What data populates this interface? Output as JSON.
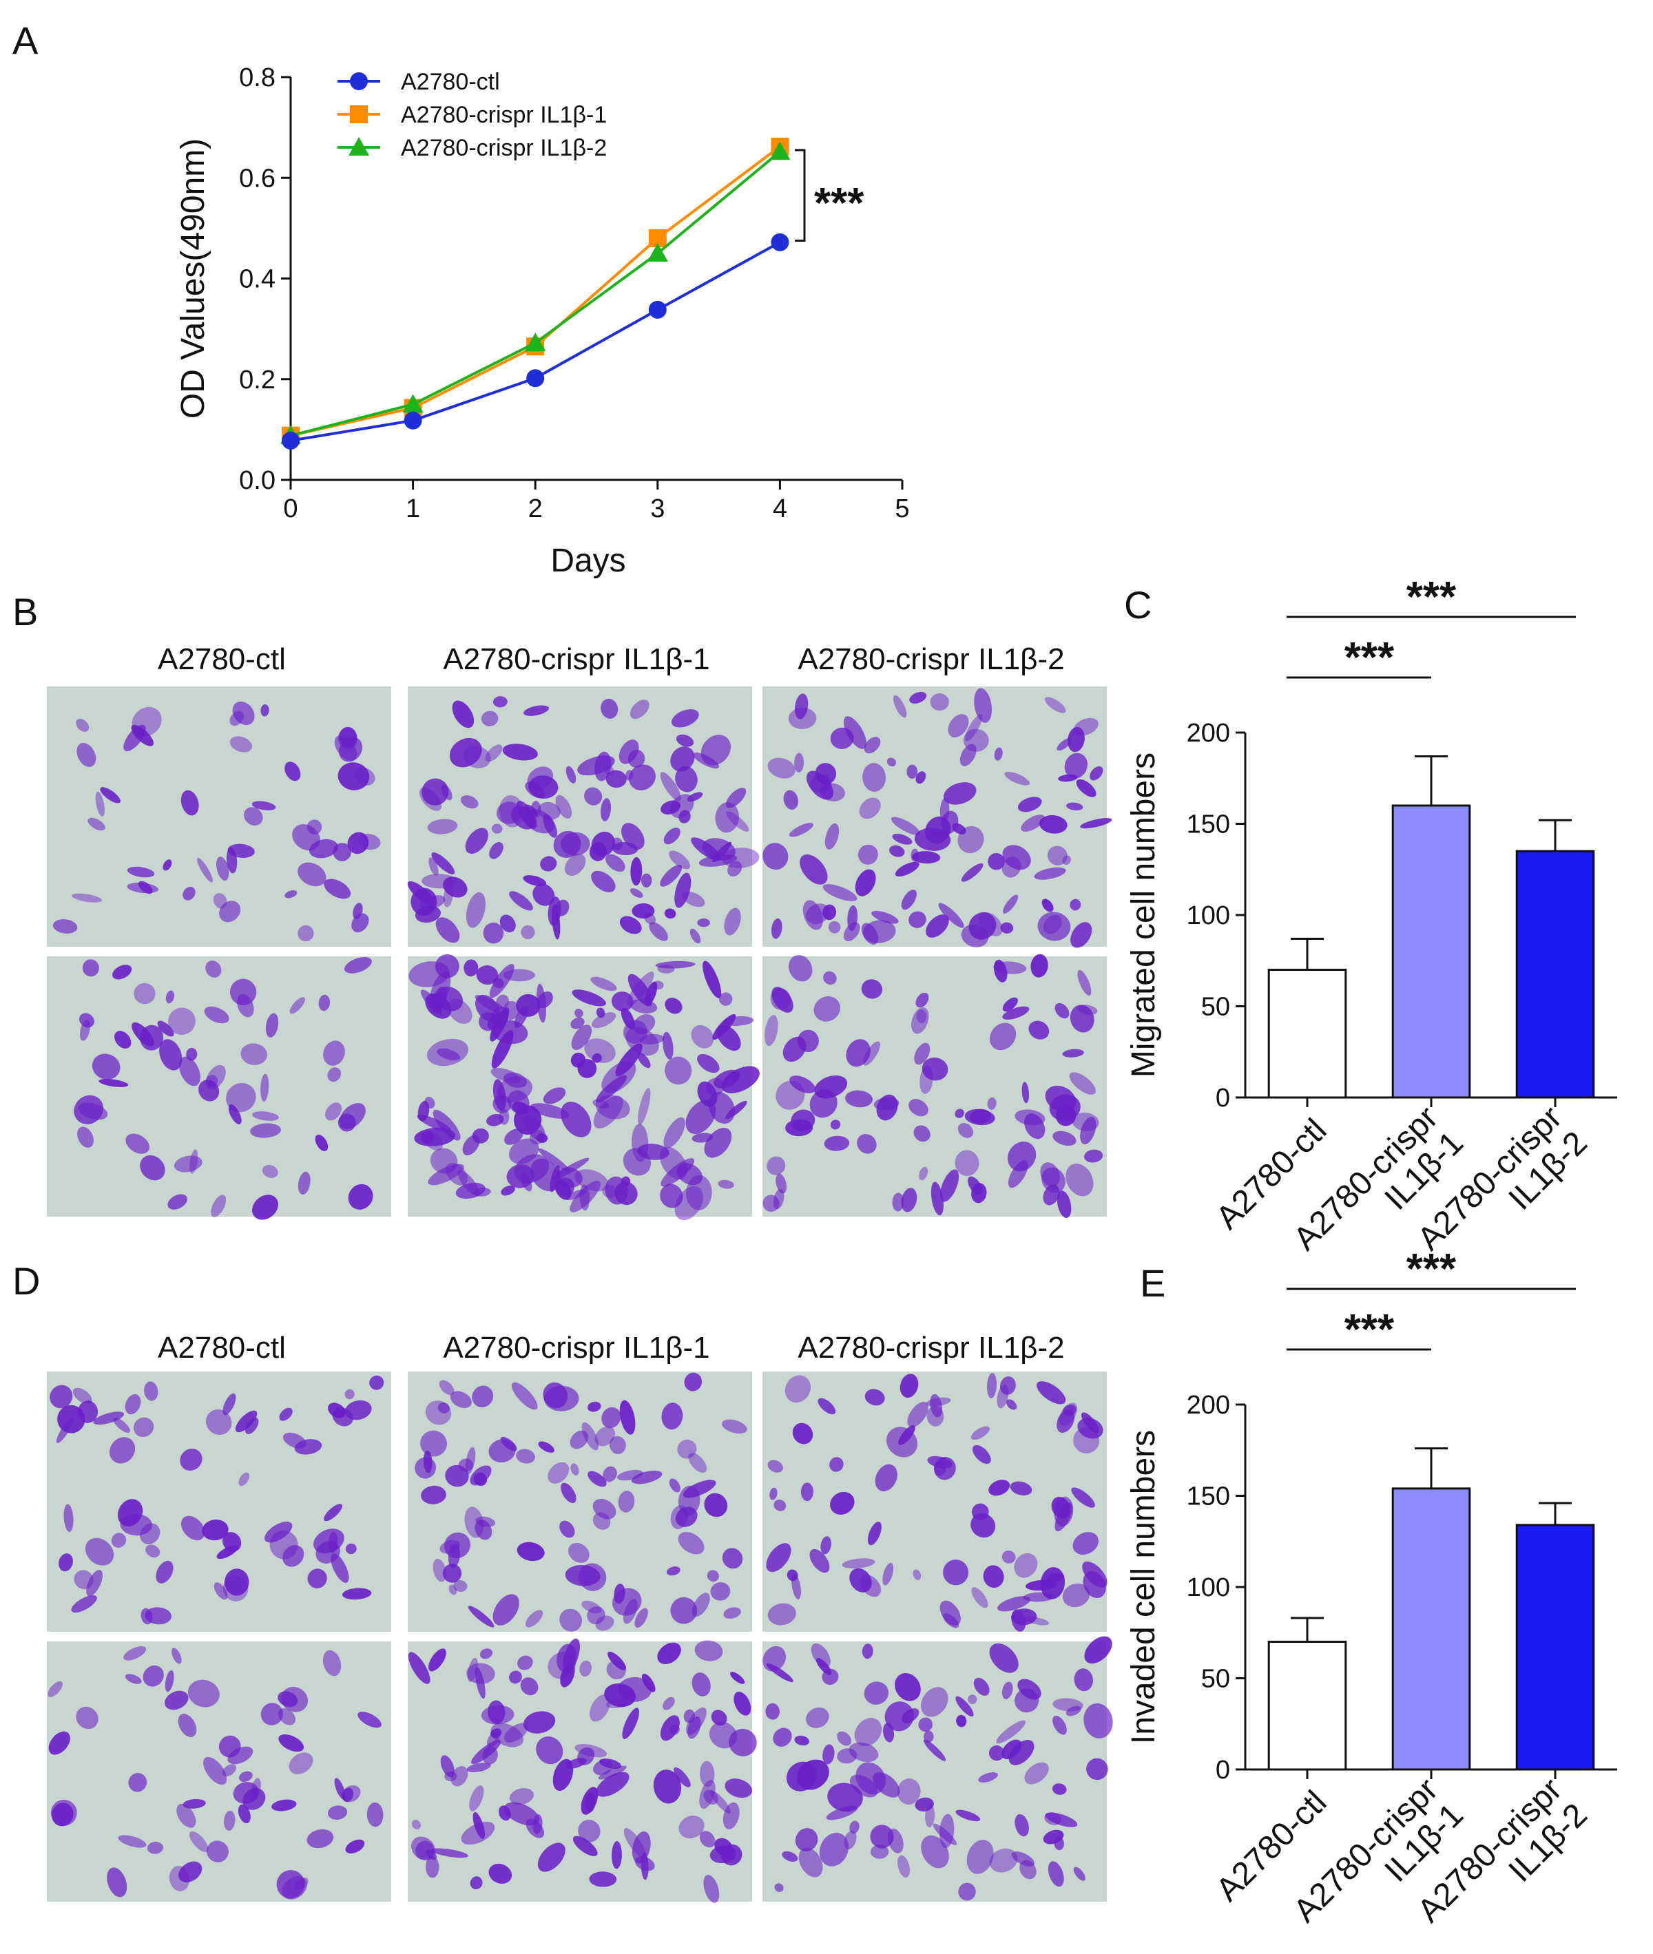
{
  "panel_labels": {
    "a": "A",
    "b": "B",
    "c": "C",
    "d": "D",
    "e": "E"
  },
  "colors": {
    "ctl": "#1f2ed6",
    "il1": "#ff8c00",
    "il2": "#1db31d",
    "bar_ctl": "#ffffff",
    "bar_il1": "#8c8cff",
    "bar_il2": "#1a1af5",
    "stain": "#6a1fc8",
    "field_bg": "#c9d5cf"
  },
  "micrograph_headers": {
    "b": [
      "A2780-ctl",
      "A2780-crispr IL1β-1",
      "A2780-crispr IL1β-2"
    ],
    "d": [
      "A2780-ctl",
      "A2780-crispr IL1β-1",
      "A2780-crispr IL1β-2"
    ]
  },
  "micrograph_density": {
    "b": [
      [
        0.18,
        0.42,
        0.35
      ],
      [
        0.2,
        0.55,
        0.3
      ]
    ],
    "d": [
      [
        0.22,
        0.32,
        0.28
      ],
      [
        0.2,
        0.38,
        0.32
      ]
    ]
  },
  "chart_data": [
    {
      "id": "A",
      "type": "line",
      "title": "",
      "xlabel": "Days",
      "ylabel": "OD Values(490nm)",
      "xlim": [
        0,
        5
      ],
      "ylim": [
        0,
        0.8
      ],
      "xticks": [
        "0",
        "1",
        "2",
        "3",
        "4",
        "5"
      ],
      "yticks": [
        "0.0",
        "0.2",
        "0.4",
        "0.6",
        "0.8"
      ],
      "legend_position": "top-left",
      "series": [
        {
          "name": "A2780-ctl",
          "marker": "circle",
          "color_key": "ctl",
          "x": [
            0,
            1,
            2,
            3,
            4
          ],
          "values": [
            0.078,
            0.118,
            0.202,
            0.338,
            0.472
          ],
          "err": [
            0.005,
            0.006,
            0.007,
            0.008,
            0.014
          ]
        },
        {
          "name": "A2780-crispr IL1β-1",
          "marker": "square",
          "color_key": "il1",
          "x": [
            0,
            1,
            2,
            3,
            4
          ],
          "values": [
            0.088,
            0.143,
            0.265,
            0.48,
            0.662
          ],
          "err": [
            0.004,
            0.006,
            0.01,
            0.009,
            0.008
          ]
        },
        {
          "name": "A2780-crispr IL1β-2",
          "marker": "triangle",
          "color_key": "il2",
          "x": [
            0,
            1,
            2,
            3,
            4
          ],
          "values": [
            0.088,
            0.15,
            0.272,
            0.45,
            0.652
          ],
          "err": [
            0.004,
            0.006,
            0.012,
            0.009,
            0.008
          ]
        }
      ],
      "annotation": "***"
    },
    {
      "id": "C",
      "type": "bar",
      "ylabel": "Migrated cell numbers",
      "ylim": [
        0,
        200
      ],
      "yticks": [
        "0",
        "50",
        "100",
        "150",
        "200"
      ],
      "categories": [
        [
          "A2780-ctl"
        ],
        [
          "A2780-crispr",
          "IL1β-1"
        ],
        [
          "A2780-crispr",
          "IL1β-2"
        ]
      ],
      "values": [
        70,
        160,
        135
      ],
      "err": [
        17,
        27,
        17
      ],
      "color_keys": [
        "bar_ctl",
        "bar_il1",
        "bar_il2"
      ],
      "significance": [
        {
          "from": 0,
          "to": 1,
          "label": "***"
        },
        {
          "from": 0,
          "to": 2,
          "label": "***"
        }
      ]
    },
    {
      "id": "E",
      "type": "bar",
      "ylabel": "Invaded cell numbers",
      "ylim": [
        0,
        200
      ],
      "yticks": [
        "0",
        "50",
        "100",
        "150",
        "200"
      ],
      "categories": [
        [
          "A2780-ctl"
        ],
        [
          "A2780-crispr",
          "IL1β-1"
        ],
        [
          "A2780-crispr",
          "IL1β-2"
        ]
      ],
      "values": [
        70,
        154,
        134
      ],
      "err": [
        13,
        22,
        12
      ],
      "color_keys": [
        "bar_ctl",
        "bar_il1",
        "bar_il2"
      ],
      "significance": [
        {
          "from": 0,
          "to": 1,
          "label": "***"
        },
        {
          "from": 0,
          "to": 2,
          "label": "***"
        }
      ]
    }
  ]
}
